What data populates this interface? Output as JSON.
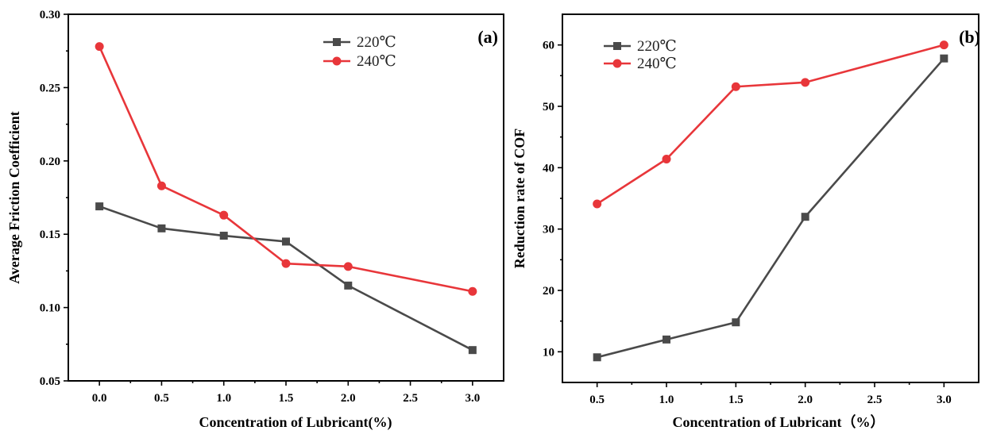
{
  "chart_data": [
    {
      "type": "line",
      "panel_label": "(a)",
      "xlabel": "Concentration of Lubricant(%)",
      "ylabel": "Average Friction Coefficient",
      "xlim": [
        -0.25,
        3.25
      ],
      "ylim": [
        0.05,
        0.3
      ],
      "x_ticks": [
        0.0,
        0.5,
        1.0,
        1.5,
        2.0,
        2.5,
        3.0
      ],
      "x_tick_labels": [
        "0.0",
        "0.5",
        "1.0",
        "1.5",
        "2.0",
        "2.5",
        "3.0"
      ],
      "y_ticks": [
        0.05,
        0.1,
        0.15,
        0.2,
        0.25,
        0.3
      ],
      "y_tick_labels": [
        "0.05",
        "0.10",
        "0.15",
        "0.20",
        "0.25",
        "0.30"
      ],
      "grid": false,
      "legend_position": "top-right",
      "series": [
        {
          "name": "220℃",
          "color": "#4a4a4a",
          "marker": "square",
          "x": [
            0.0,
            0.5,
            1.0,
            1.5,
            2.0,
            3.0
          ],
          "y": [
            0.169,
            0.154,
            0.149,
            0.145,
            0.115,
            0.071
          ]
        },
        {
          "name": "240℃",
          "color": "#e8363a",
          "marker": "circle",
          "x": [
            0.0,
            0.5,
            1.0,
            1.5,
            2.0,
            3.0
          ],
          "y": [
            0.278,
            0.183,
            0.163,
            0.13,
            0.128,
            0.111
          ]
        }
      ]
    },
    {
      "type": "line",
      "panel_label": "(b)",
      "xlabel": "Concentration of Lubricant（%）",
      "ylabel": "Reduction rate of COF",
      "xlim": [
        0.25,
        3.25
      ],
      "ylim": [
        5,
        65
      ],
      "x_ticks": [
        0.5,
        1.0,
        1.5,
        2.0,
        2.5,
        3.0
      ],
      "x_tick_labels": [
        "0.5",
        "1.0",
        "1.5",
        "2.0",
        "2.5",
        "3.0"
      ],
      "y_ticks": [
        10,
        20,
        30,
        40,
        50,
        60
      ],
      "y_tick_labels": [
        "10",
        "20",
        "30",
        "40",
        "50",
        "60"
      ],
      "grid": false,
      "legend_position": "top-left",
      "series": [
        {
          "name": "220℃",
          "color": "#4a4a4a",
          "marker": "square",
          "x": [
            0.5,
            1.0,
            1.5,
            2.0,
            3.0
          ],
          "y": [
            9.1,
            12.0,
            14.8,
            32.0,
            57.8
          ]
        },
        {
          "name": "240℃",
          "color": "#e8363a",
          "marker": "circle",
          "x": [
            0.5,
            1.0,
            1.5,
            2.0,
            3.0
          ],
          "y": [
            34.1,
            41.4,
            53.2,
            53.9,
            60.0
          ]
        }
      ]
    }
  ]
}
